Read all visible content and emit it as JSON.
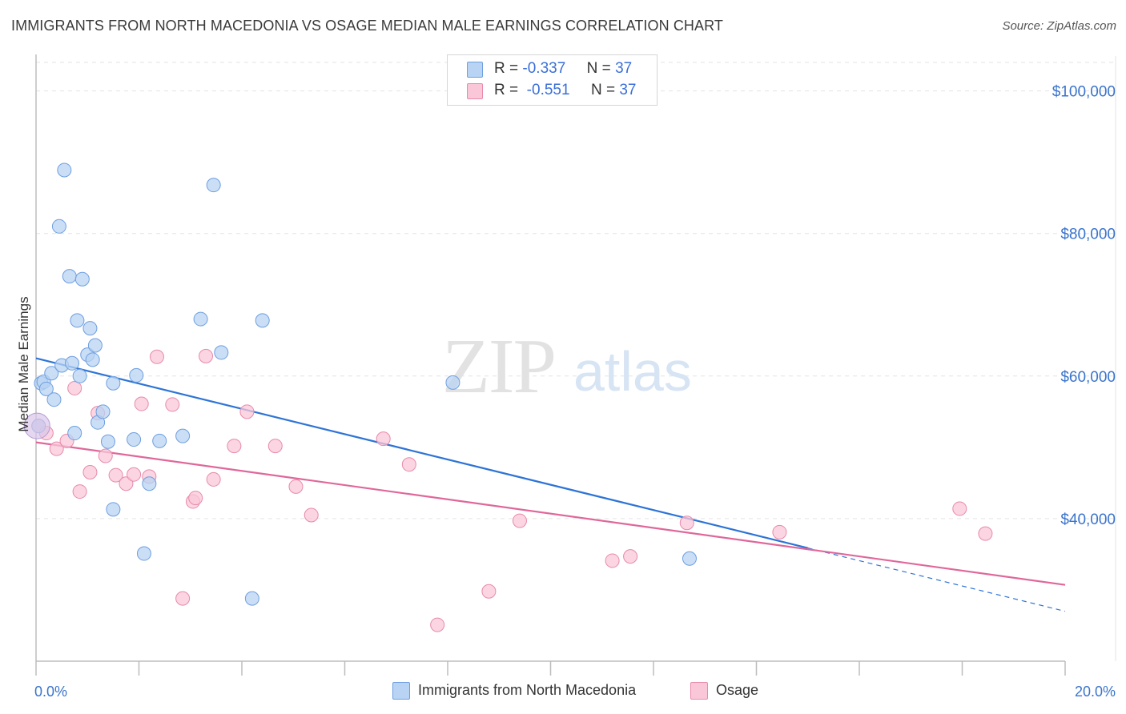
{
  "title": "IMMIGRANTS FROM NORTH MACEDONIA VS OSAGE MEDIAN MALE EARNINGS CORRELATION CHART",
  "source": "Source: ZipAtlas.com",
  "watermark": {
    "zip": "ZIP",
    "atlas": "atlas"
  },
  "legend": {
    "series1": {
      "r_label": "R =",
      "r_value": "-0.337",
      "n_label": "N =",
      "n_value": "37"
    },
    "series2": {
      "r_label": "R =",
      "r_value": "-0.551",
      "n_label": "N =",
      "n_value": "37"
    }
  },
  "bottom_legend": {
    "series1_label": "Immigrants from North Macedonia",
    "series2_label": "Osage"
  },
  "colors": {
    "series1_fill": "#b8d3f3",
    "series1_stroke": "#6e9fe0",
    "series1_line": "#2e74d6",
    "series2_fill": "#f9c7d8",
    "series2_stroke": "#e88aab",
    "series2_line": "#e0679a",
    "axis_text": "#3a74cc"
  },
  "chart_data": {
    "type": "scatter",
    "title": "IMMIGRANTS FROM NORTH MACEDONIA VS OSAGE MEDIAN MALE EARNINGS CORRELATION CHART",
    "xlabel": "",
    "ylabel": "Median Male Earnings",
    "xlim": [
      0,
      20
    ],
    "ylim": [
      20000,
      104000
    ],
    "x_tick_labels": [
      "0.0%",
      "20.0%"
    ],
    "y_ticks": [
      40000,
      60000,
      80000,
      100000
    ],
    "y_tick_labels": [
      "$40,000",
      "$60,000",
      "$80,000",
      "$100,000"
    ],
    "grid": true,
    "series": [
      {
        "name": "Immigrants from North Macedonia",
        "points": [
          [
            0.1,
            59000
          ],
          [
            0.15,
            59200
          ],
          [
            0.2,
            58200
          ],
          [
            0.3,
            60400
          ],
          [
            0.35,
            56700
          ],
          [
            0.45,
            81000
          ],
          [
            0.5,
            61500
          ],
          [
            0.55,
            88900
          ],
          [
            0.65,
            74000
          ],
          [
            0.7,
            61800
          ],
          [
            0.75,
            52000
          ],
          [
            0.8,
            67800
          ],
          [
            0.85,
            60000
          ],
          [
            0.9,
            73600
          ],
          [
            1.0,
            63000
          ],
          [
            1.05,
            66700
          ],
          [
            1.1,
            62300
          ],
          [
            1.15,
            64300
          ],
          [
            1.2,
            53500
          ],
          [
            1.3,
            55000
          ],
          [
            1.4,
            50800
          ],
          [
            1.5,
            59000
          ],
          [
            1.5,
            41300
          ],
          [
            1.9,
            51100
          ],
          [
            1.95,
            60100
          ],
          [
            2.1,
            35100
          ],
          [
            2.2,
            44900
          ],
          [
            2.4,
            50900
          ],
          [
            2.85,
            51600
          ],
          [
            3.2,
            68000
          ],
          [
            3.45,
            86800
          ],
          [
            3.6,
            63300
          ],
          [
            4.2,
            28800
          ],
          [
            4.4,
            67800
          ],
          [
            8.1,
            59100
          ],
          [
            12.7,
            34400
          ],
          [
            0.05,
            53000
          ]
        ],
        "trend": {
          "x": [
            0,
            20
          ],
          "y": [
            62500,
            27000
          ],
          "solid_until_x": 15
        }
      },
      {
        "name": "Osage",
        "points": [
          [
            0.05,
            53000
          ],
          [
            0.2,
            52000
          ],
          [
            0.4,
            49800
          ],
          [
            0.6,
            50900
          ],
          [
            0.75,
            58300
          ],
          [
            0.85,
            43800
          ],
          [
            1.05,
            46500
          ],
          [
            1.2,
            54800
          ],
          [
            1.35,
            48800
          ],
          [
            1.55,
            46100
          ],
          [
            1.75,
            44900
          ],
          [
            1.9,
            46200
          ],
          [
            2.05,
            56100
          ],
          [
            2.2,
            45900
          ],
          [
            2.35,
            62700
          ],
          [
            2.65,
            56000
          ],
          [
            2.85,
            28800
          ],
          [
            3.05,
            42400
          ],
          [
            3.1,
            42900
          ],
          [
            3.3,
            62800
          ],
          [
            3.45,
            45500
          ],
          [
            3.85,
            50200
          ],
          [
            4.1,
            55000
          ],
          [
            4.65,
            50200
          ],
          [
            5.05,
            44500
          ],
          [
            5.35,
            40500
          ],
          [
            6.75,
            51200
          ],
          [
            7.25,
            47600
          ],
          [
            7.8,
            25100
          ],
          [
            8.8,
            29800
          ],
          [
            9.4,
            39700
          ],
          [
            11.2,
            34100
          ],
          [
            11.55,
            34700
          ],
          [
            12.65,
            39400
          ],
          [
            14.45,
            38100
          ],
          [
            17.95,
            41400
          ],
          [
            18.45,
            37900
          ]
        ],
        "trend": {
          "x": [
            0,
            20
          ],
          "y": [
            50700,
            30700
          ]
        }
      }
    ]
  }
}
